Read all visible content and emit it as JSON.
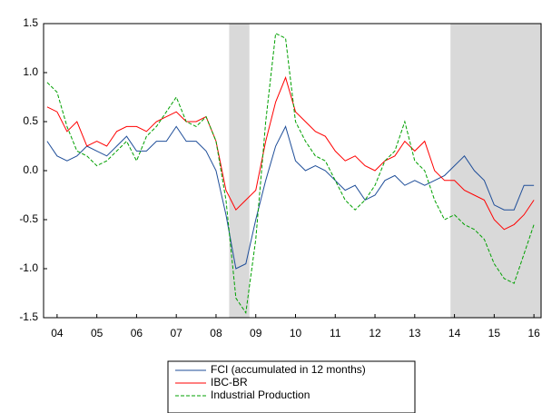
{
  "chart_data": {
    "type": "line",
    "x": [
      4.25,
      4.5,
      4.75,
      5,
      5.25,
      5.5,
      5.75,
      6,
      6.25,
      6.5,
      6.75,
      7,
      7.25,
      7.5,
      7.75,
      8,
      8.25,
      8.5,
      8.75,
      9,
      9.25,
      9.5,
      9.75,
      10,
      10.25,
      10.5,
      10.75,
      11,
      11.25,
      11.5,
      11.75,
      12,
      12.25,
      12.5,
      12.75,
      13,
      13.25,
      13.5,
      13.75,
      14,
      14.25,
      14.5,
      14.75,
      15,
      15.25,
      15.5,
      15.75,
      16,
      16.25,
      16.5
    ],
    "series": [
      {
        "name": "FCI (accumulated in 12 months)",
        "color": "#1f4e99",
        "dashed": false,
        "values": [
          0.3,
          0.15,
          0.1,
          0.15,
          0.25,
          0.2,
          0.15,
          0.25,
          0.35,
          0.2,
          0.2,
          0.3,
          0.3,
          0.45,
          0.3,
          0.3,
          0.2,
          0.0,
          -0.45,
          -1.0,
          -0.95,
          -0.5,
          -0.1,
          0.25,
          0.45,
          0.1,
          0.0,
          0.05,
          0.0,
          -0.1,
          -0.2,
          -0.15,
          -0.3,
          -0.25,
          -0.1,
          -0.05,
          -0.15,
          -0.1,
          -0.15,
          -0.1,
          -0.05,
          0.05,
          0.15,
          0.0,
          -0.1,
          -0.35,
          -0.4,
          -0.4,
          -0.15,
          -0.15
        ]
      },
      {
        "name": "IBC-BR",
        "color": "#ff0000",
        "dashed": false,
        "values": [
          0.65,
          0.6,
          0.4,
          0.5,
          0.25,
          0.3,
          0.25,
          0.4,
          0.45,
          0.45,
          0.4,
          0.5,
          0.55,
          0.6,
          0.5,
          0.5,
          0.55,
          0.3,
          -0.2,
          -0.4,
          -0.3,
          -0.2,
          0.3,
          0.7,
          0.95,
          0.6,
          0.5,
          0.4,
          0.35,
          0.2,
          0.1,
          0.15,
          0.05,
          0.0,
          0.1,
          0.15,
          0.3,
          0.2,
          0.3,
          0.0,
          -0.1,
          -0.1,
          -0.2,
          -0.25,
          -0.3,
          -0.5,
          -0.6,
          -0.55,
          -0.45,
          -0.3
        ]
      },
      {
        "name": "Industrial Production",
        "color": "#00a000",
        "dashed": true,
        "values": [
          0.9,
          0.8,
          0.45,
          0.2,
          0.15,
          0.05,
          0.1,
          0.2,
          0.3,
          0.1,
          0.35,
          0.45,
          0.6,
          0.75,
          0.5,
          0.45,
          0.55,
          0.3,
          -0.3,
          -1.3,
          -1.45,
          -0.7,
          0.5,
          1.4,
          1.35,
          0.5,
          0.3,
          0.15,
          0.1,
          -0.1,
          -0.3,
          -0.4,
          -0.3,
          -0.15,
          0.1,
          0.2,
          0.5,
          0.1,
          0.0,
          -0.3,
          -0.5,
          -0.45,
          -0.55,
          -0.6,
          -0.7,
          -0.95,
          -1.1,
          -1.15,
          -0.85,
          -0.55
        ]
      }
    ],
    "shaded_periods": [
      [
        8.83,
        9.34
      ],
      [
        14.4,
        16.68
      ]
    ],
    "xlim": [
      4.16,
      16.68
    ],
    "xticks": [
      {
        "value": 4.5,
        "label": "04"
      },
      {
        "value": 5.5,
        "label": "05"
      },
      {
        "value": 6.5,
        "label": "06"
      },
      {
        "value": 7.5,
        "label": "07"
      },
      {
        "value": 8.5,
        "label": "08"
      },
      {
        "value": 9.5,
        "label": "09"
      },
      {
        "value": 10.5,
        "label": "10"
      },
      {
        "value": 11.5,
        "label": "11"
      },
      {
        "value": 12.5,
        "label": "12"
      },
      {
        "value": 13.5,
        "label": "13"
      },
      {
        "value": 14.5,
        "label": "14"
      },
      {
        "value": 15.5,
        "label": "15"
      },
      {
        "value": 16.5,
        "label": "16"
      }
    ],
    "ylim": [
      -1.5,
      1.5
    ],
    "yticks": [
      -1.5,
      {
        "value": -1.0,
        "label": "-1.0"
      },
      -0.5,
      {
        "value": 0.0,
        "label": "0.0"
      },
      0.5,
      {
        "value": 1.0,
        "label": "1.0"
      },
      1.5
    ],
    "legend": "bottom"
  }
}
